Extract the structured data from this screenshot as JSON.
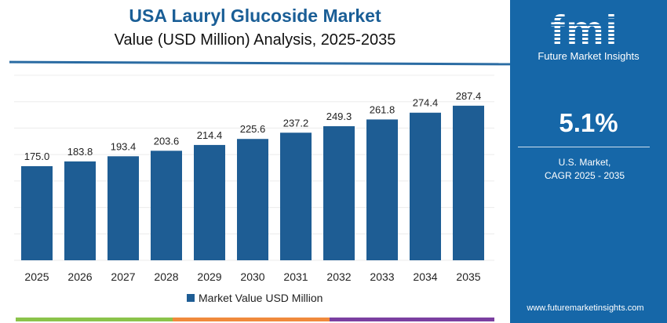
{
  "chart_data": {
    "type": "bar",
    "title": "USA Lauryl Glucoside Market",
    "subtitle": "Value (USD Million) Analysis, 2025-2035",
    "categories": [
      "2025",
      "2026",
      "2027",
      "2028",
      "2029",
      "2030",
      "2031",
      "2032",
      "2033",
      "2034",
      "2035"
    ],
    "series": [
      {
        "name": "Market Value USD Million",
        "values": [
          175.0,
          183.8,
          193.4,
          203.6,
          214.4,
          225.6,
          237.2,
          249.3,
          261.8,
          274.4,
          287.4
        ]
      }
    ],
    "data_labels": [
      "175.0",
      "183.8",
      "193.4",
      "203.6",
      "214.4",
      "225.6",
      "237.2",
      "249.3",
      "261.8",
      "274.4",
      "287.4"
    ],
    "ylim": [
      0,
      344
    ],
    "grid": true,
    "legend": "bottom",
    "bar_color": "#1e5d94"
  },
  "sidebar": {
    "logo": "fmi",
    "logo_text": "Future Market Insights",
    "cagr": "5.1%",
    "market_line1": "U.S. Market,",
    "market_line2": "CAGR 2025 - 2035",
    "url": "www.futuremarketinsights.com",
    "bg_color": "#1667a8"
  }
}
